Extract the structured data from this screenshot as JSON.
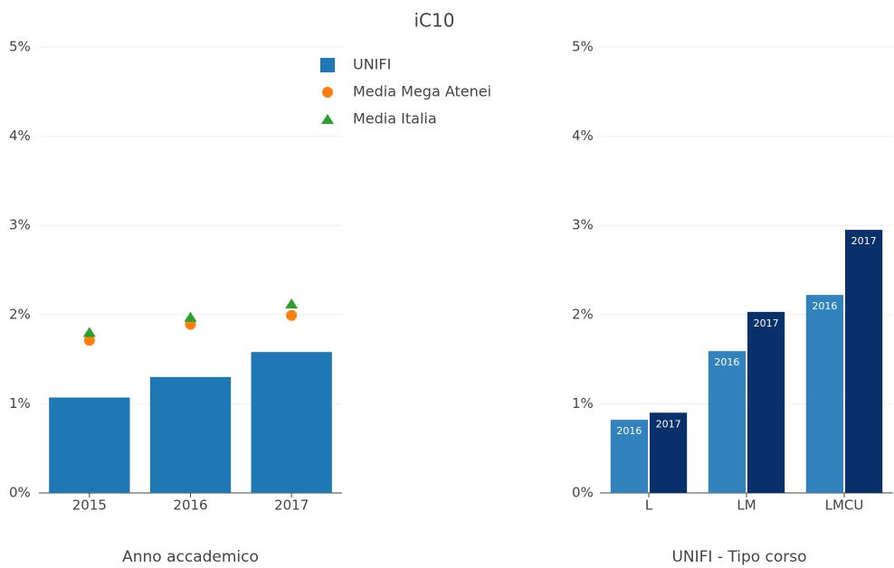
{
  "chart_data": [
    {
      "type": "bar",
      "title": "iC10",
      "x_label": "Anno accademico",
      "categories": [
        "2015",
        "2016",
        "2017"
      ],
      "series": [
        {
          "name": "UNIFI",
          "color": "#1f77b4",
          "mark": "bar",
          "values": [
            1.07,
            1.3,
            1.58
          ]
        },
        {
          "name": "Media Mega Atenei",
          "color": "#ff7f0e",
          "mark": "circle",
          "values": [
            1.71,
            1.89,
            1.99
          ]
        },
        {
          "name": "Media Italia",
          "color": "#2ca02c",
          "mark": "triangle",
          "values": [
            1.8,
            1.97,
            2.12
          ]
        }
      ],
      "ylim": [
        0,
        5
      ],
      "yticks": [
        {
          "value": 0,
          "label": "0%"
        },
        {
          "value": 1,
          "label": "1%"
        },
        {
          "value": 2,
          "label": "2%"
        },
        {
          "value": 3,
          "label": "3%"
        },
        {
          "value": 4,
          "label": "4%"
        },
        {
          "value": 5,
          "label": "5%"
        }
      ],
      "grid": true,
      "legend": "top-right"
    },
    {
      "type": "grouped_bar",
      "x_label": "UNIFI - Tipo corso",
      "categories": [
        "L",
        "LM",
        "LMCU"
      ],
      "series": [
        {
          "name": "2016",
          "color": "#3182bd",
          "values": [
            0.82,
            1.59,
            2.22
          ]
        },
        {
          "name": "2017",
          "color": "#08306b",
          "values": [
            0.9,
            2.03,
            2.95
          ]
        }
      ],
      "ylim": [
        0,
        5
      ],
      "yticks": [
        {
          "value": 0,
          "label": "0%"
        },
        {
          "value": 1,
          "label": "1%"
        },
        {
          "value": 2,
          "label": "2%"
        },
        {
          "value": 3,
          "label": "3%"
        },
        {
          "value": 4,
          "label": "4%"
        },
        {
          "value": 5,
          "label": "5%"
        }
      ],
      "grid": true,
      "bar_labels": "series-name"
    }
  ]
}
